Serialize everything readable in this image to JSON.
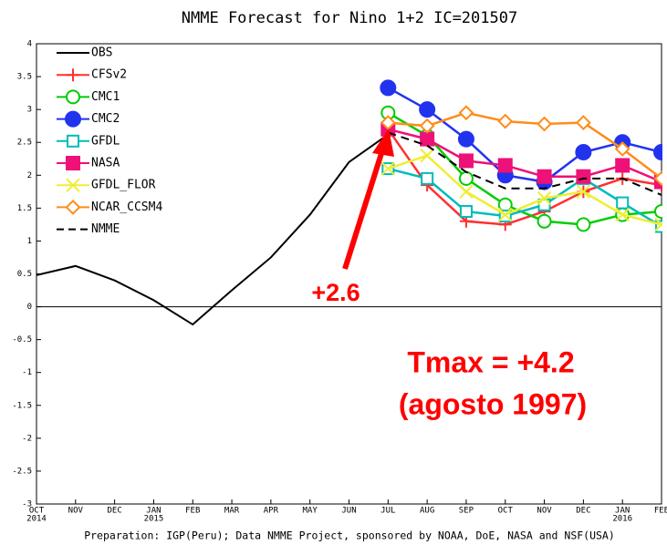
{
  "chart_data": {
    "type": "line",
    "title": "NMME Forecast for Nino 1+2 IC=201507",
    "footer": "Preparation: IGP(Peru); Data NMME Project, sponsored by NOAA, DoE, NASA and NSF(USA)",
    "categories": [
      "OCT",
      "NOV",
      "DEC",
      "JAN",
      "FEB",
      "MAR",
      "APR",
      "MAY",
      "JUN",
      "JUL",
      "AUG",
      "SEP",
      "OCT",
      "NOV",
      "DEC",
      "JAN",
      "FEB"
    ],
    "category_years": [
      "2014",
      null,
      null,
      "2015",
      null,
      null,
      null,
      null,
      null,
      null,
      null,
      null,
      null,
      null,
      null,
      "2016",
      null
    ],
    "ylim": [
      -3,
      4
    ],
    "yticks": [
      -3,
      -2.5,
      -2,
      -1.5,
      -1,
      -0.5,
      0,
      0.5,
      1,
      1.5,
      2,
      2.5,
      3,
      3.5,
      4
    ],
    "legend": "top-left",
    "series": [
      {
        "name": "OBS",
        "color": "#000000",
        "marker": "none",
        "dash": false,
        "values": [
          0.48,
          0.62,
          0.4,
          0.1,
          -0.27,
          0.25,
          0.75,
          1.4,
          2.2,
          2.62,
          null,
          null,
          null,
          null,
          null,
          null,
          null
        ]
      },
      {
        "name": "CFSv2",
        "color": "#ff3030",
        "marker": "plus",
        "dash": false,
        "values": [
          null,
          null,
          null,
          null,
          null,
          null,
          null,
          null,
          null,
          2.7,
          1.85,
          1.3,
          1.25,
          1.45,
          1.75,
          1.95,
          1.85
        ]
      },
      {
        "name": "CMC1",
        "color": "#00cc00",
        "marker": "circle-open",
        "dash": false,
        "values": [
          null,
          null,
          null,
          null,
          null,
          null,
          null,
          null,
          null,
          2.95,
          2.6,
          1.95,
          1.55,
          1.3,
          1.25,
          1.4,
          1.45
        ]
      },
      {
        "name": "CMC2",
        "color": "#2233ee",
        "marker": "circle",
        "dash": false,
        "values": [
          null,
          null,
          null,
          null,
          null,
          null,
          null,
          null,
          null,
          3.33,
          3.0,
          2.55,
          2.0,
          1.9,
          2.35,
          2.5,
          2.35
        ]
      },
      {
        "name": "GFDL",
        "color": "#00bbbb",
        "marker": "square-open",
        "dash": false,
        "values": [
          null,
          null,
          null,
          null,
          null,
          null,
          null,
          null,
          null,
          2.1,
          1.95,
          1.45,
          1.38,
          1.55,
          1.95,
          1.58,
          1.22
        ]
      },
      {
        "name": "NASA",
        "color": "#ee1177",
        "marker": "square",
        "dash": false,
        "values": [
          null,
          null,
          null,
          null,
          null,
          null,
          null,
          null,
          null,
          2.7,
          2.55,
          2.22,
          2.15,
          1.98,
          1.98,
          2.15,
          1.9
        ]
      },
      {
        "name": "GFDL_FLOR",
        "color": "#eeee33",
        "marker": "x",
        "dash": false,
        "values": [
          null,
          null,
          null,
          null,
          null,
          null,
          null,
          null,
          null,
          2.1,
          2.3,
          1.75,
          1.4,
          1.65,
          1.75,
          1.4,
          1.25
        ]
      },
      {
        "name": "NCAR_CCSM4",
        "color": "#ff8c1a",
        "marker": "diamond-open",
        "dash": false,
        "values": [
          null,
          null,
          null,
          null,
          null,
          null,
          null,
          null,
          null,
          2.8,
          2.75,
          2.95,
          2.82,
          2.78,
          2.8,
          2.4,
          1.95
        ]
      },
      {
        "name": "NMME",
        "color": "#000000",
        "marker": "none",
        "dash": true,
        "values": [
          null,
          null,
          null,
          null,
          null,
          null,
          null,
          null,
          null,
          2.65,
          2.45,
          2.05,
          1.8,
          1.8,
          1.95,
          1.95,
          1.7
        ]
      }
    ],
    "annotations": [
      "+2.6",
      "Tmax = +4.2",
      "(agosto 1997)"
    ]
  }
}
